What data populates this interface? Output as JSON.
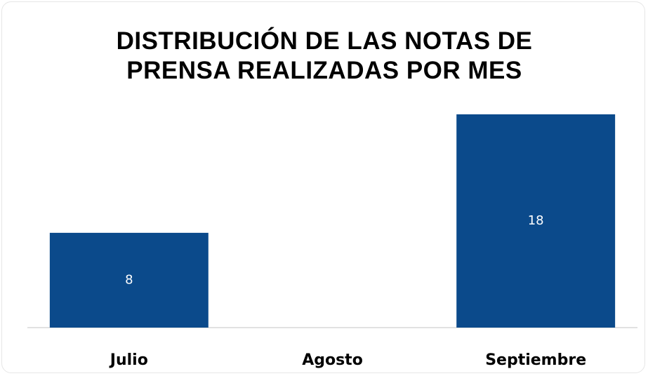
{
  "chart_data": {
    "type": "bar",
    "title": "DISTRIBUCIÓN DE LAS NOTAS DE PRENSA REALIZADAS POR MES",
    "categories": [
      "Julio",
      "Agosto",
      "Septiembre"
    ],
    "values": [
      8,
      null,
      18
    ],
    "color": "#0b4a8b"
  }
}
